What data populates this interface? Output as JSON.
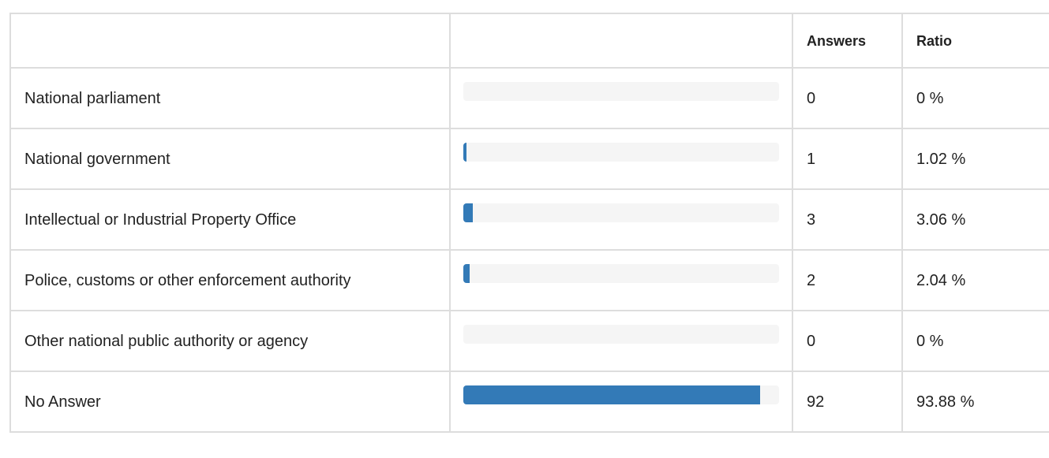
{
  "table": {
    "header": [
      "Answers",
      "Ratio"
    ],
    "xlim": [
      0,
      100
    ],
    "rows": [
      {
        "label": "National parliament",
        "answers": 0,
        "ratio": 0,
        "ratio_label": "0 %"
      },
      {
        "label": "National government",
        "answers": 1,
        "ratio": 1.02,
        "ratio_label": "1.02 %"
      },
      {
        "label": "Intellectual or Industrial Property Office",
        "answers": 3,
        "ratio": 3.06,
        "ratio_label": "3.06 %"
      },
      {
        "label": "Police, customs or other enforcement authority",
        "answers": 2,
        "ratio": 2.04,
        "ratio_label": "2.04 %"
      },
      {
        "label": "Other national public authority or agency",
        "answers": 0,
        "ratio": 0,
        "ratio_label": "0 %"
      },
      {
        "label": "No Answer",
        "answers": 92,
        "ratio": 93.88,
        "ratio_label": "93.88 %"
      }
    ]
  }
}
